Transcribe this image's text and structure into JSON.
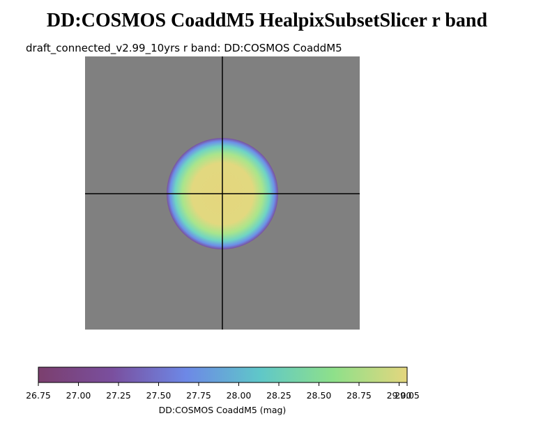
{
  "chart_data": {
    "type": "colorbar-map",
    "title": "DD:COSMOS CoaddM5 HealpixSubsetSlicer r band",
    "subtitle": "draft_connected_v2.99_10yrs r band: DD:COSMOS CoaddM5",
    "colorbar_label": "DD:COSMOS CoaddM5 (mag)",
    "clim": [
      26.75,
      29.05
    ],
    "cticks": [
      26.75,
      {
        "value": 27,
        "label": "27.00"
      },
      27.25,
      {
        "value": 27.5,
        "label": "27.50"
      },
      27.75,
      {
        "value": 28,
        "label": "28.00"
      },
      28.25,
      {
        "value": 28.5,
        "label": "28.50"
      },
      28.75,
      {
        "value": 29,
        "label": "29.00"
      },
      29.05
    ]
  }
}
